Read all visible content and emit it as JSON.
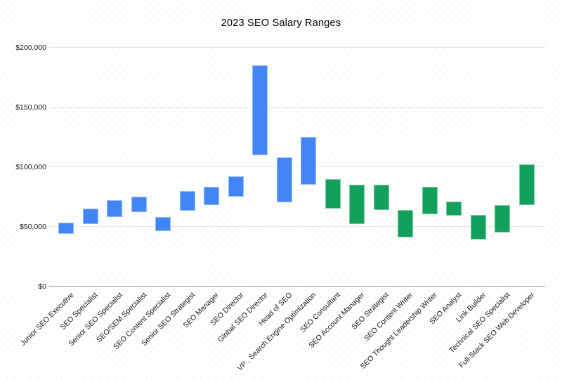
{
  "chart_data": {
    "type": "bar",
    "subtype": "floating-range-columns",
    "title": "2023 SEO Salary Ranges",
    "xlabel": "",
    "ylabel": "",
    "ylim": [
      0,
      200000
    ],
    "grid": "horizontal",
    "legend": "none",
    "series_colors": {
      "blue": "#4285F4",
      "green": "#12A15C"
    },
    "yticks": [
      {
        "value": 0,
        "label": "$0"
      },
      {
        "value": 50000,
        "label": "$50,000"
      },
      {
        "value": 100000,
        "label": "$100,000"
      },
      {
        "value": 150000,
        "label": "$150,000"
      },
      {
        "value": 200000,
        "label": "$200,000"
      }
    ],
    "bars": [
      {
        "label": "Junior SEO Executive",
        "low": 44000,
        "high": 53000,
        "group": "blue"
      },
      {
        "label": "SEO Specialist",
        "low": 52000,
        "high": 65000,
        "group": "blue"
      },
      {
        "label": "Senior SEO Specialist",
        "low": 58000,
        "high": 72000,
        "group": "blue"
      },
      {
        "label": "SEO/SEM Specialist",
        "low": 62000,
        "high": 75000,
        "group": "blue"
      },
      {
        "label": "SEO Content Specialist",
        "low": 46000,
        "high": 58000,
        "group": "blue"
      },
      {
        "label": "Senior SEO Strategist",
        "low": 63000,
        "high": 80000,
        "group": "blue"
      },
      {
        "label": "SEO Manager",
        "low": 68000,
        "high": 83000,
        "group": "blue"
      },
      {
        "label": "SEO Director",
        "low": 75000,
        "high": 92000,
        "group": "blue"
      },
      {
        "label": "Global SEO Director",
        "low": 110000,
        "high": 185000,
        "group": "blue"
      },
      {
        "label": "Head of SEO",
        "low": 70000,
        "high": 108000,
        "group": "blue"
      },
      {
        "label": "VP , Search Engine Optimization",
        "low": 85000,
        "high": 125000,
        "group": "blue"
      },
      {
        "label": "SEO Consultant",
        "low": 65000,
        "high": 90000,
        "group": "green"
      },
      {
        "label": "SEO Account Manager",
        "low": 52000,
        "high": 85000,
        "group": "green"
      },
      {
        "label": "SEO Strategist",
        "low": 64000,
        "high": 85000,
        "group": "green"
      },
      {
        "label": "SEO Content Writer",
        "low": 41000,
        "high": 64000,
        "group": "green"
      },
      {
        "label": "SEO Thought Leadership Writer",
        "low": 60000,
        "high": 83000,
        "group": "green"
      },
      {
        "label": "SEO Analyst",
        "low": 59000,
        "high": 71000,
        "group": "green"
      },
      {
        "label": "Link Builder",
        "low": 39000,
        "high": 60000,
        "group": "green"
      },
      {
        "label": "Technical SEO Specialist",
        "low": 45000,
        "high": 68000,
        "group": "green"
      },
      {
        "label": "Full-Stack SEO Web Developer",
        "low": 68000,
        "high": 102000,
        "group": "green"
      }
    ]
  }
}
